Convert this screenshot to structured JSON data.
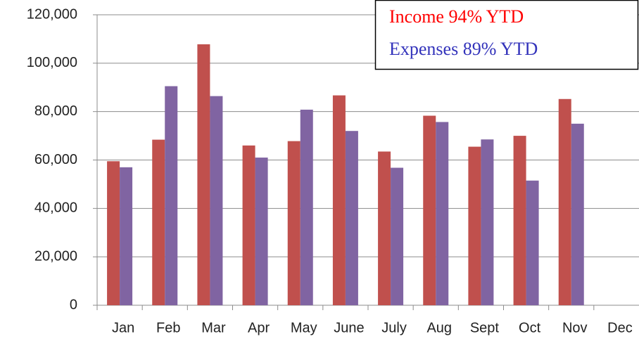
{
  "chart_data": {
    "type": "bar",
    "categories": [
      "Jan",
      "Feb",
      "Mar",
      "Apr",
      "May",
      "June",
      "July",
      "Aug",
      "Sept",
      "Oct",
      "Nov",
      "Dec"
    ],
    "series": [
      {
        "color": "#c0504d",
        "values": [
          59500,
          68400,
          107800,
          66000,
          67800,
          86700,
          63500,
          78300,
          65500,
          70000,
          85200,
          null
        ]
      },
      {
        "color": "#8064a2",
        "values": [
          57000,
          90500,
          86400,
          61000,
          80800,
          72000,
          56800,
          75700,
          68500,
          51500,
          75000,
          null
        ]
      }
    ],
    "ylim": [
      0,
      120000
    ],
    "yticks": [
      0,
      {
        "value": 20000,
        "label": "20,000"
      },
      {
        "value": 40000,
        "label": "40,000"
      },
      {
        "value": 60000,
        "label": "60,000"
      },
      {
        "value": 80000,
        "label": "80,000"
      },
      {
        "value": 100000,
        "label": "100,000"
      },
      {
        "value": 120000,
        "label": "120,000"
      }
    ],
    "grid": true,
    "annotations": [
      {
        "text": "Income 94% YTD",
        "color": "#ff0000"
      },
      {
        "text": "Expenses 89% YTD",
        "color": "#3333bb"
      }
    ]
  }
}
